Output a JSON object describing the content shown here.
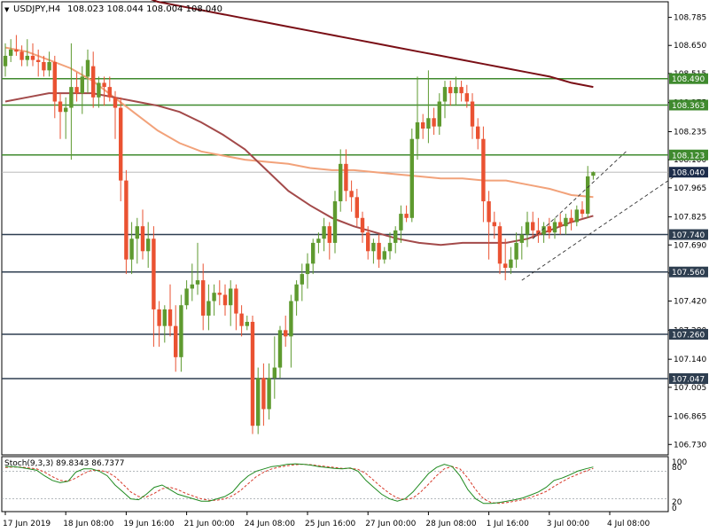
{
  "header": {
    "symbol_label": "USDJPY,H4",
    "ohlc": "108.023 108.044 108.004 108.040",
    "menu_arrow": "▼"
  },
  "colors": {
    "bull": "#5e9a2f",
    "bear": "#ea5232",
    "ma_fast": "#a34a4a",
    "ma_mid": "#f2a27a",
    "ma_slow": "#7a0f16",
    "level_green": "#3f8a2e",
    "level_dark": "#2e3e50",
    "stoch_main": "#1f8a1f",
    "stoch_signal": "#d83a2a",
    "current_price_bg": "#1c2c4a"
  },
  "stoch": {
    "label": "Stoch(9,3,3) 89.8343 86.7377",
    "scale_top": "100",
    "scale_80": "80",
    "scale_20": "20",
    "scale_0": "0"
  },
  "chart_data": {
    "type": "candlestick",
    "title": "USDJPY,H4",
    "ylim": [
      106.68,
      108.86
    ],
    "price_ticks": [
      "108.785",
      "108.650",
      "108.515",
      "108.375",
      "108.235",
      "108.100",
      "107.965",
      "107.825",
      "107.690",
      "107.555",
      "107.420",
      "107.280",
      "107.140",
      "107.005",
      "106.865",
      "106.730"
    ],
    "levels": [
      {
        "value": 108.49,
        "label": "108.490",
        "style": "green"
      },
      {
        "value": 108.363,
        "label": "108.363",
        "style": "green"
      },
      {
        "value": 108.123,
        "label": "108.123",
        "style": "green"
      },
      {
        "value": 107.74,
        "label": "107.740",
        "style": "dark"
      },
      {
        "value": 107.56,
        "label": "107.560",
        "style": "dark"
      },
      {
        "value": 107.26,
        "label": "107.260",
        "style": "dark"
      },
      {
        "value": 107.047,
        "label": "107.047",
        "style": "dark"
      }
    ],
    "current_price": {
      "value": 108.04,
      "label": "108.040"
    },
    "x_labels": [
      {
        "label": "17 Jun 2019",
        "bar": 0
      },
      {
        "label": "18 Jun 08:00",
        "bar": 11
      },
      {
        "label": "19 Jun 16:00",
        "bar": 22
      },
      {
        "label": "21 Jun 00:00",
        "bar": 33
      },
      {
        "label": "24 Jun 08:00",
        "bar": 44
      },
      {
        "label": "25 Jun 16:00",
        "bar": 55
      },
      {
        "label": "27 Jun 00:00",
        "bar": 66
      },
      {
        "label": "28 Jun 08:00",
        "bar": 77
      },
      {
        "label": "1 Jul 16:00",
        "bar": 88
      },
      {
        "label": "3 Jul 00:00",
        "bar": 99
      },
      {
        "label": "4 Jul 08:00",
        "bar": 110
      }
    ],
    "candles": [
      [
        108.55,
        108.66,
        108.5,
        108.6
      ],
      [
        108.6,
        108.68,
        108.57,
        108.63
      ],
      [
        108.63,
        108.7,
        108.6,
        108.62
      ],
      [
        108.62,
        108.65,
        108.55,
        108.58
      ],
      [
        108.58,
        108.68,
        108.55,
        108.6
      ],
      [
        108.6,
        108.66,
        108.55,
        108.58
      ],
      [
        108.58,
        108.63,
        108.5,
        108.57
      ],
      [
        108.57,
        108.6,
        108.5,
        108.53
      ],
      [
        108.53,
        108.62,
        108.5,
        108.57
      ],
      [
        108.57,
        108.6,
        108.3,
        108.38
      ],
      [
        108.38,
        108.42,
        108.2,
        108.33
      ],
      [
        108.33,
        108.4,
        108.2,
        108.35
      ],
      [
        108.35,
        108.66,
        108.1,
        108.45
      ],
      [
        108.45,
        108.52,
        108.38,
        108.42
      ],
      [
        108.42,
        108.55,
        108.32,
        108.5
      ],
      [
        108.5,
        108.63,
        108.42,
        108.58
      ],
      [
        108.55,
        108.62,
        108.35,
        108.4
      ],
      [
        108.4,
        108.5,
        108.35,
        108.47
      ],
      [
        108.47,
        108.5,
        108.36,
        108.45
      ],
      [
        108.45,
        108.5,
        108.38,
        108.4
      ],
      [
        108.4,
        108.43,
        108.2,
        108.35
      ],
      [
        108.35,
        108.4,
        107.9,
        108.0
      ],
      [
        108.0,
        108.05,
        107.55,
        107.62
      ],
      [
        107.62,
        107.8,
        107.55,
        107.72
      ],
      [
        107.72,
        107.82,
        107.6,
        107.78
      ],
      [
        107.78,
        107.86,
        107.62,
        107.66
      ],
      [
        107.66,
        107.8,
        107.58,
        107.72
      ],
      [
        107.72,
        107.78,
        107.2,
        107.38
      ],
      [
        107.38,
        107.42,
        107.2,
        107.3
      ],
      [
        107.3,
        107.4,
        107.22,
        107.38
      ],
      [
        107.38,
        107.5,
        107.25,
        107.3
      ],
      [
        107.3,
        107.4,
        107.08,
        107.15
      ],
      [
        107.15,
        107.45,
        107.08,
        107.4
      ],
      [
        107.4,
        107.52,
        107.38,
        107.48
      ],
      [
        107.48,
        107.6,
        107.42,
        107.5
      ],
      [
        107.5,
        107.7,
        107.45,
        107.52
      ],
      [
        107.52,
        107.6,
        107.28,
        107.35
      ],
      [
        107.35,
        107.5,
        107.28,
        107.42
      ],
      [
        107.42,
        107.5,
        107.35,
        107.46
      ],
      [
        107.46,
        107.52,
        107.4,
        107.45
      ],
      [
        107.45,
        107.5,
        107.35,
        107.4
      ],
      [
        107.4,
        107.52,
        107.3,
        107.48
      ],
      [
        107.48,
        107.5,
        107.28,
        107.36
      ],
      [
        107.36,
        107.4,
        107.25,
        107.3
      ],
      [
        107.3,
        107.35,
        107.28,
        107.32
      ],
      [
        107.32,
        107.35,
        106.78,
        106.82
      ],
      [
        106.82,
        107.1,
        106.78,
        107.05
      ],
      [
        107.05,
        107.12,
        106.82,
        106.9
      ],
      [
        106.9,
        107.12,
        106.85,
        107.05
      ],
      [
        107.05,
        107.25,
        106.95,
        107.1
      ],
      [
        107.1,
        107.3,
        107.05,
        107.28
      ],
      [
        107.28,
        107.35,
        107.2,
        107.25
      ],
      [
        107.25,
        107.45,
        107.1,
        107.42
      ],
      [
        107.42,
        107.52,
        107.35,
        107.5
      ],
      [
        107.5,
        107.6,
        107.42,
        107.55
      ],
      [
        107.55,
        107.65,
        107.48,
        107.6
      ],
      [
        107.6,
        107.72,
        107.55,
        107.7
      ],
      [
        107.7,
        107.75,
        107.65,
        107.72
      ],
      [
        107.72,
        107.82,
        107.66,
        107.78
      ],
      [
        107.78,
        107.8,
        107.62,
        107.7
      ],
      [
        107.7,
        107.95,
        107.65,
        107.9
      ],
      [
        107.9,
        108.15,
        107.85,
        108.08
      ],
      [
        108.08,
        108.15,
        107.9,
        107.95
      ],
      [
        107.95,
        108.0,
        107.85,
        107.92
      ],
      [
        107.92,
        107.96,
        107.78,
        107.82
      ],
      [
        107.82,
        107.85,
        107.7,
        107.75
      ],
      [
        107.75,
        107.78,
        107.62,
        107.66
      ],
      [
        107.66,
        107.72,
        107.6,
        107.7
      ],
      [
        107.7,
        107.74,
        107.58,
        107.62
      ],
      [
        107.62,
        107.68,
        107.6,
        107.66
      ],
      [
        107.66,
        107.75,
        107.62,
        107.7
      ],
      [
        107.7,
        107.78,
        107.65,
        107.76
      ],
      [
        107.76,
        107.88,
        107.7,
        107.84
      ],
      [
        107.84,
        107.88,
        107.8,
        107.82
      ],
      [
        107.82,
        108.25,
        107.8,
        108.2
      ],
      [
        108.2,
        108.5,
        108.1,
        108.28
      ],
      [
        108.28,
        108.32,
        108.2,
        108.25
      ],
      [
        108.25,
        108.53,
        108.18,
        108.3
      ],
      [
        108.3,
        108.35,
        108.22,
        108.26
      ],
      [
        108.26,
        108.42,
        108.22,
        108.38
      ],
      [
        108.38,
        108.48,
        108.3,
        108.45
      ],
      [
        108.45,
        108.48,
        108.36,
        108.42
      ],
      [
        108.42,
        108.5,
        108.36,
        108.45
      ],
      [
        108.45,
        108.48,
        108.38,
        108.42
      ],
      [
        108.42,
        108.46,
        108.35,
        108.38
      ],
      [
        108.38,
        108.42,
        108.2,
        108.26
      ],
      [
        108.26,
        108.3,
        108.15,
        108.2
      ],
      [
        108.2,
        108.26,
        107.8,
        107.9
      ],
      [
        107.9,
        107.95,
        107.62,
        107.8
      ],
      [
        107.8,
        107.85,
        107.72,
        107.78
      ],
      [
        107.78,
        107.8,
        107.55,
        107.6
      ],
      [
        107.6,
        107.72,
        107.52,
        107.58
      ],
      [
        107.58,
        107.68,
        107.55,
        107.62
      ],
      [
        107.62,
        107.75,
        107.58,
        107.7
      ],
      [
        107.7,
        107.78,
        107.62,
        107.74
      ],
      [
        107.74,
        107.85,
        107.68,
        107.8
      ],
      [
        107.8,
        107.85,
        107.72,
        107.76
      ],
      [
        107.76,
        107.82,
        107.7,
        107.74
      ],
      [
        107.74,
        107.8,
        107.7,
        107.78
      ],
      [
        107.78,
        107.82,
        107.72,
        107.75
      ],
      [
        107.75,
        107.82,
        107.72,
        107.8
      ],
      [
        107.8,
        107.84,
        107.74,
        107.78
      ],
      [
        107.78,
        107.84,
        107.74,
        107.82
      ],
      [
        107.82,
        107.86,
        107.76,
        107.8
      ],
      [
        107.8,
        107.88,
        107.78,
        107.86
      ],
      [
        107.86,
        107.9,
        107.82,
        107.84
      ],
      [
        107.84,
        108.07,
        107.82,
        108.02
      ],
      [
        108.023,
        108.044,
        108.004,
        108.04
      ]
    ],
    "ma_fast": [
      108.38,
      108.4,
      108.42,
      108.42,
      108.42,
      108.4,
      108.38,
      108.36,
      108.33,
      108.28,
      108.22,
      108.15,
      108.05,
      107.95,
      107.88,
      107.82,
      107.78,
      107.75,
      107.72,
      107.7,
      107.69,
      107.7,
      107.7,
      107.7,
      107.72,
      107.76,
      107.8,
      107.83
    ],
    "ma_mid": [
      108.64,
      108.62,
      108.58,
      108.54,
      108.48,
      108.4,
      108.32,
      108.24,
      108.18,
      108.14,
      108.12,
      108.1,
      108.09,
      108.08,
      108.06,
      108.05,
      108.05,
      108.04,
      108.03,
      108.02,
      108.01,
      108.01,
      108.0,
      108.0,
      107.98,
      107.96,
      107.93,
      107.92
    ],
    "ma_slow": [
      109.2,
      109.15,
      109.1,
      109.05,
      109.0,
      108.95,
      108.9,
      108.86,
      108.84,
      108.82,
      108.8,
      108.78,
      108.76,
      108.74,
      108.72,
      108.7,
      108.68,
      108.66,
      108.64,
      108.62,
      108.6,
      108.58,
      108.56,
      108.54,
      108.52,
      108.5,
      108.47,
      108.45
    ],
    "stoch_main": [
      90,
      90,
      88,
      85,
      82,
      70,
      60,
      55,
      58,
      78,
      85,
      85,
      80,
      70,
      50,
      35,
      20,
      18,
      30,
      45,
      50,
      40,
      30,
      25,
      20,
      15,
      15,
      20,
      25,
      35,
      55,
      70,
      80,
      85,
      90,
      92,
      95,
      96,
      95,
      93,
      90,
      88,
      86,
      85,
      87,
      80,
      60,
      45,
      30,
      20,
      15,
      20,
      35,
      55,
      75,
      88,
      95,
      90,
      70,
      40,
      20,
      10,
      10,
      12,
      15,
      18,
      22,
      28,
      35,
      45,
      60,
      65,
      72,
      80,
      85,
      89
    ],
    "stoch_signal": [
      88,
      89,
      89,
      87,
      85,
      78,
      68,
      60,
      58,
      65,
      75,
      82,
      82,
      78,
      68,
      52,
      35,
      25,
      24,
      32,
      42,
      45,
      40,
      32,
      26,
      20,
      17,
      17,
      20,
      27,
      38,
      53,
      68,
      78,
      85,
      89,
      92,
      94,
      95,
      94,
      92,
      90,
      88,
      86,
      86,
      84,
      75,
      60,
      45,
      32,
      22,
      18,
      22,
      35,
      52,
      70,
      85,
      90,
      85,
      65,
      40,
      20,
      12,
      10,
      12,
      15,
      18,
      23,
      29,
      36,
      47,
      57,
      66,
      73,
      80,
      86
    ]
  }
}
